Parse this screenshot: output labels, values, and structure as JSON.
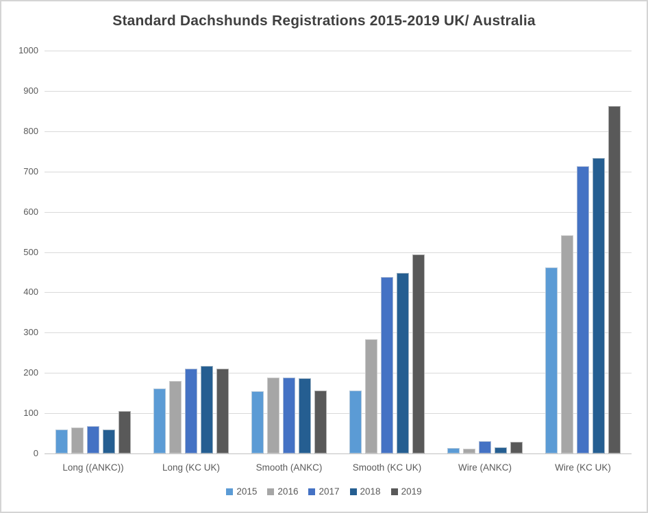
{
  "chart_data": {
    "type": "bar",
    "title": "Standard Dachshunds Registrations 2015-2019 UK/ Australia",
    "categories": [
      "Long ((ANKC))",
      "Long (KC UK)",
      "Smooth (ANKC)",
      "Smooth (KC UK)",
      "Wire (ANKC)",
      "Wire (KC UK)"
    ],
    "series": [
      {
        "name": "2015",
        "color": "#5B9BD5",
        "pattern": false,
        "values": [
          60,
          162,
          155,
          156,
          13,
          461
        ]
      },
      {
        "name": "2016",
        "color": "#A6A6A6",
        "pattern": true,
        "dot_color": "#878787",
        "values": [
          64,
          180,
          188,
          284,
          12,
          542
        ]
      },
      {
        "name": "2017",
        "color": "#4472C4",
        "pattern": false,
        "values": [
          68,
          210,
          189,
          438,
          31,
          713
        ]
      },
      {
        "name": "2018",
        "color": "#255E91",
        "pattern": false,
        "values": [
          60,
          217,
          187,
          448,
          15,
          734
        ]
      },
      {
        "name": "2019",
        "color": "#595959",
        "pattern": true,
        "dot_color": "#474747",
        "values": [
          106,
          210,
          156,
          494,
          29,
          862
        ]
      }
    ],
    "ylim": [
      0,
      1000
    ],
    "ytick_step": 100,
    "ytick_labels": [
      "0",
      "100",
      "200",
      "300",
      "400",
      "500",
      "600",
      "700",
      "800",
      "900",
      "1000"
    ],
    "grid": true,
    "legend_position": "bottom",
    "xlabel": "",
    "ylabel": ""
  },
  "style_colors": {
    "background": "#ffffff",
    "frame_border": "#d4d4d4",
    "gridline": "#d9d9d9",
    "axis_line": "#c0c0c0",
    "tick_text": "#595959",
    "title_text": "#404040"
  }
}
